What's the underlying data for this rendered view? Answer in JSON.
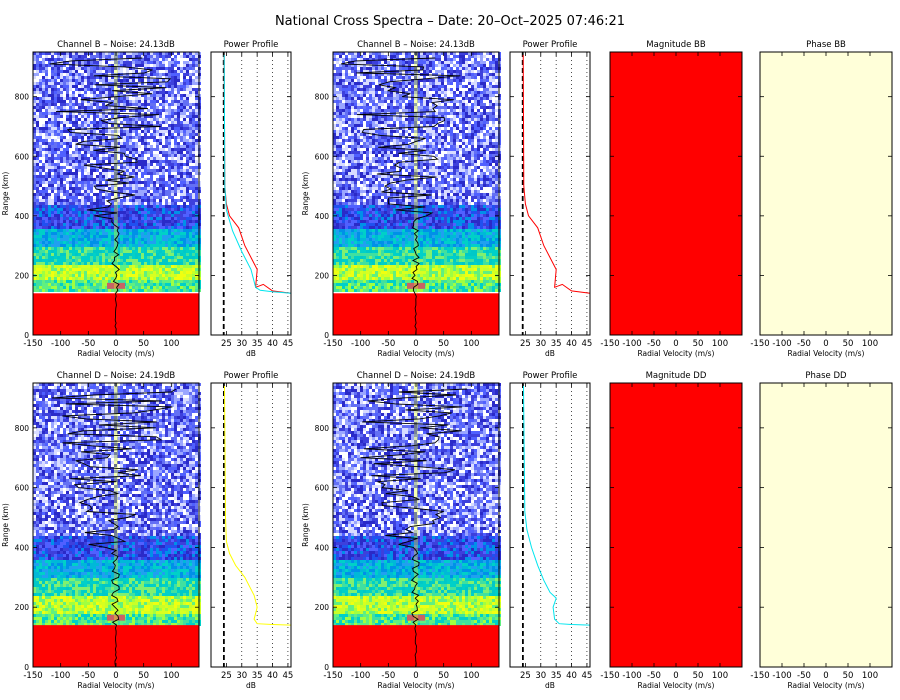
{
  "title": "National Cross Spectra – Date: 20–Oct–2025 07:46:21",
  "colors": {
    "red": "#ff0000",
    "cyan": "#00e5ee",
    "yellow": "#ffff00",
    "phase_fill": "#ffffd9",
    "noise_bg": "#3a3ae0",
    "teal": "#00c8c8",
    "lime": "#c8ff28"
  },
  "chart_data": [
    {
      "type": "heatmap",
      "id": "spec_B1",
      "title": "Channel B – Noise: 24.13dB",
      "xlabel": "Radial Velocity (m/s)",
      "ylabel": "Range (km)",
      "xlim": [
        -150,
        150
      ],
      "ylim": [
        0,
        950
      ],
      "xticks": [
        "-150",
        "-100",
        "-50",
        "0",
        "50",
        "100"
      ],
      "xtick_values": [
        -150,
        -100,
        -50,
        0,
        50,
        100
      ],
      "yticks": [
        "0",
        "200",
        "400",
        "600",
        "800"
      ],
      "ytick_values": [
        0,
        200,
        400,
        600,
        800
      ],
      "dc_range": 140
    },
    {
      "type": "line",
      "id": "prof_B1",
      "title": "Power Profile",
      "xlabel": "dB",
      "xlim": [
        20,
        46
      ],
      "ylim": [
        0,
        950
      ],
      "xticks": [
        "25",
        "30",
        "35",
        "40",
        "45"
      ],
      "xtick_values": [
        25,
        30,
        35,
        40,
        45
      ],
      "noise_level": 24.13,
      "series": [
        {
          "color": "red",
          "x": [
            46,
            40,
            37,
            34.5,
            35,
            34,
            33,
            31,
            29,
            26,
            25,
            24.5,
            24.3
          ],
          "y": [
            140,
            148,
            170,
            160,
            220,
            240,
            260,
            300,
            360,
            400,
            440,
            500,
            940
          ]
        },
        {
          "color": "cyan",
          "x": [
            46,
            40,
            36,
            34.5,
            33,
            31,
            30,
            27,
            25,
            24.5,
            24.3
          ],
          "y": [
            140,
            145,
            150,
            160,
            220,
            260,
            280,
            350,
            420,
            500,
            940
          ]
        }
      ]
    },
    {
      "type": "heatmap",
      "id": "spec_B2",
      "title": "Channel B – Noise: 24.13dB",
      "xlabel": "Radial Velocity (m/s)",
      "ylabel": "Range (km)",
      "xlim": [
        -150,
        150
      ],
      "ylim": [
        0,
        950
      ],
      "xticks": [
        "-150",
        "-100",
        "-50",
        "0",
        "50",
        "100"
      ],
      "xtick_values": [
        -150,
        -100,
        -50,
        0,
        50,
        100
      ],
      "yticks": [
        "0",
        "200",
        "400",
        "600",
        "800"
      ],
      "ytick_values": [
        0,
        200,
        400,
        600,
        800
      ],
      "dc_range": 140
    },
    {
      "type": "line",
      "id": "prof_B2",
      "title": "Power Profile",
      "xlabel": "dB",
      "xlim": [
        20,
        46
      ],
      "ylim": [
        0,
        950
      ],
      "xticks": [
        "25",
        "30",
        "35",
        "40",
        "45"
      ],
      "xtick_values": [
        25,
        30,
        35,
        40,
        45
      ],
      "noise_level": 24.13,
      "series": [
        {
          "color": "red",
          "x": [
            46,
            40,
            37,
            34.5,
            35,
            34,
            33,
            31,
            29,
            26,
            25,
            24.5,
            24.3
          ],
          "y": [
            140,
            148,
            170,
            160,
            220,
            240,
            260,
            300,
            360,
            400,
            440,
            500,
            940
          ]
        }
      ]
    },
    {
      "type": "heatmap",
      "id": "mag_BB",
      "title": "Magnitude BB",
      "xlabel": "Radial Velocity (m/s)",
      "xlim": [
        -150,
        150
      ],
      "ylim": [
        0,
        950
      ],
      "xticks": [
        "-150",
        "-100",
        "-50",
        "0",
        "50",
        "100"
      ],
      "xtick_values": [
        -150,
        -100,
        -50,
        0,
        50,
        100
      ],
      "fill": "red"
    },
    {
      "type": "heatmap",
      "id": "phase_BB",
      "title": "Phase BB",
      "xlabel": "Radial Velocity (m/s)",
      "xlim": [
        -150,
        150
      ],
      "ylim": [
        0,
        950
      ],
      "xticks": [
        "-150",
        "-100",
        "-50",
        "0",
        "50",
        "100"
      ],
      "xtick_values": [
        -150,
        -100,
        -50,
        0,
        50,
        100
      ],
      "fill": "phase_fill"
    },
    {
      "type": "heatmap",
      "id": "spec_D1",
      "title": "Channel D – Noise: 24.19dB",
      "xlabel": "Radial Velocity (m/s)",
      "ylabel": "Range (km)",
      "xlim": [
        -150,
        150
      ],
      "ylim": [
        0,
        950
      ],
      "xticks": [
        "-150",
        "-100",
        "-50",
        "0",
        "50",
        "100"
      ],
      "xtick_values": [
        -150,
        -100,
        -50,
        0,
        50,
        100
      ],
      "yticks": [
        "0",
        "200",
        "400",
        "600",
        "800"
      ],
      "ytick_values": [
        0,
        200,
        400,
        600,
        800
      ],
      "dc_range": 140
    },
    {
      "type": "line",
      "id": "prof_D1",
      "title": "Power Profile",
      "xlabel": "dB",
      "xlim": [
        20,
        46
      ],
      "ylim": [
        0,
        950
      ],
      "xticks": [
        "25",
        "30",
        "35",
        "40",
        "45"
      ],
      "xtick_values": [
        25,
        30,
        35,
        40,
        45
      ],
      "noise_level": 24.19,
      "series": [
        {
          "color": "yellow",
          "x": [
            46,
            40,
            35,
            34,
            35,
            34,
            33,
            31,
            28,
            26,
            25,
            24.7,
            24.4
          ],
          "y": [
            140,
            142,
            145,
            160,
            200,
            240,
            260,
            300,
            340,
            380,
            420,
            500,
            940
          ]
        }
      ]
    },
    {
      "type": "heatmap",
      "id": "spec_D2",
      "title": "Channel D – Noise: 24.19dB",
      "xlabel": "Radial Velocity (m/s)",
      "ylabel": "Range (km)",
      "xlim": [
        -150,
        150
      ],
      "ylim": [
        0,
        950
      ],
      "xticks": [
        "-150",
        "-100",
        "-50",
        "0",
        "50",
        "100"
      ],
      "xtick_values": [
        -150,
        -100,
        -50,
        0,
        50,
        100
      ],
      "yticks": [
        "0",
        "200",
        "400",
        "600",
        "800"
      ],
      "ytick_values": [
        0,
        200,
        400,
        600,
        800
      ],
      "dc_range": 140
    },
    {
      "type": "line",
      "id": "prof_D2",
      "title": "Power Profile",
      "xlabel": "dB",
      "xlim": [
        20,
        46
      ],
      "ylim": [
        0,
        950
      ],
      "xticks": [
        "25",
        "30",
        "35",
        "40",
        "45"
      ],
      "xtick_values": [
        25,
        30,
        35,
        40,
        45
      ],
      "noise_level": 24.19,
      "series": [
        {
          "color": "cyan",
          "x": [
            46,
            40,
            36,
            34.5,
            34,
            35,
            33,
            31,
            29,
            27,
            25.5,
            24.8,
            24.4
          ],
          "y": [
            140,
            142,
            145,
            160,
            200,
            230,
            250,
            290,
            340,
            400,
            460,
            520,
            940
          ]
        }
      ]
    },
    {
      "type": "heatmap",
      "id": "mag_DD",
      "title": "Magnitude DD",
      "xlabel": "Radial Velocity (m/s)",
      "xlim": [
        -150,
        150
      ],
      "ylim": [
        0,
        950
      ],
      "xticks": [
        "-150",
        "-100",
        "-50",
        "0",
        "50",
        "100"
      ],
      "xtick_values": [
        -150,
        -100,
        -50,
        0,
        50,
        100
      ],
      "fill": "red"
    },
    {
      "type": "heatmap",
      "id": "phase_DD",
      "title": "Phase DD",
      "xlabel": "Radial Velocity (m/s)",
      "xlim": [
        -150,
        150
      ],
      "ylim": [
        0,
        950
      ],
      "xticks": [
        "-150",
        "-100",
        "-50",
        "0",
        "50",
        "100"
      ],
      "xtick_values": [
        -150,
        -100,
        -50,
        0,
        50,
        100
      ],
      "fill": "phase_fill"
    }
  ]
}
